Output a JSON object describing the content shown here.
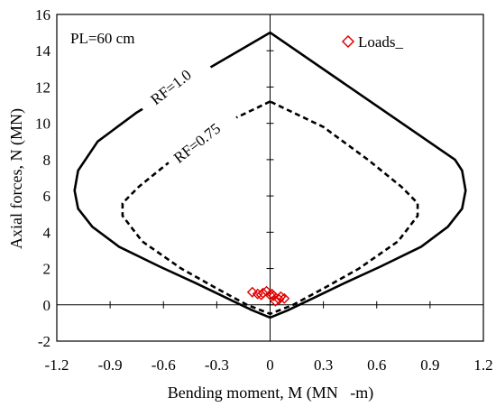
{
  "chart_data": {
    "type": "scatter",
    "title": "",
    "xlabel": "Bending moment, M (MN   -m)",
    "ylabel": "Axial forces, N (MN)",
    "xlim": [
      -1.2,
      1.2
    ],
    "ylim": [
      -2,
      16
    ],
    "x_ticks": [
      -1.2,
      -0.9,
      -0.6,
      -0.3,
      0,
      0.3,
      0.6,
      0.9,
      1.2
    ],
    "x_tick_labels": [
      "-1.2",
      "-0.9",
      "-0.6",
      "-0.3",
      "0",
      "0.3",
      "0.6",
      "0.9",
      "1.2"
    ],
    "y_ticks": [
      -2,
      0,
      2,
      4,
      6,
      8,
      10,
      12,
      14,
      16
    ],
    "y_tick_labels": [
      "-2",
      "0",
      "2",
      "4",
      "6",
      "8",
      "10",
      "12",
      "14",
      "16"
    ],
    "grid": false,
    "legend_position": "top-right",
    "annotations": [
      "PL=60 cm",
      "RF=1.0",
      "RF=0.75"
    ],
    "series": [
      {
        "name": "RF=1.0",
        "kind": "line",
        "style": "solid",
        "color": "#000000",
        "x": [
          0,
          -0.35,
          -0.75,
          -0.97,
          -1.08,
          -1.1,
          -1.08,
          -1.0,
          -0.85,
          -0.62,
          -0.42,
          -0.25,
          -0.1,
          0,
          0.1,
          0.25,
          0.42,
          0.62,
          0.85,
          1.0,
          1.08,
          1.1,
          1.08,
          1.04,
          0
        ],
        "y": [
          15.0,
          13.0,
          10.6,
          9.0,
          7.4,
          6.3,
          5.3,
          4.3,
          3.2,
          2.1,
          1.2,
          0.4,
          -0.3,
          -0.7,
          -0.3,
          0.4,
          1.2,
          2.1,
          3.2,
          4.3,
          5.3,
          6.3,
          7.4,
          8.0,
          15.0
        ]
      },
      {
        "name": "RF=0.75",
        "kind": "line",
        "style": "dashed",
        "color": "#000000",
        "x": [
          0,
          -0.3,
          -0.55,
          -0.74,
          -0.83,
          -0.83,
          -0.72,
          -0.5,
          -0.3,
          -0.13,
          0,
          0.13,
          0.3,
          0.5,
          0.72,
          0.83,
          0.83,
          0.74,
          0.55,
          0.3,
          0
        ],
        "y": [
          11.2,
          9.8,
          8.0,
          6.5,
          5.6,
          4.9,
          3.5,
          2.0,
          0.9,
          0.0,
          -0.5,
          0.0,
          0.9,
          2.0,
          3.5,
          4.9,
          5.6,
          6.5,
          8.0,
          9.8,
          11.2
        ]
      },
      {
        "name": "Loads_",
        "kind": "scatter",
        "marker": "diamond",
        "color": "#e00000",
        "x": [
          -0.1,
          -0.07,
          -0.04,
          -0.02,
          0.0,
          0.02,
          0.03,
          0.05,
          0.06,
          0.08,
          -0.05,
          0.01
        ],
        "y": [
          0.7,
          0.6,
          0.65,
          0.75,
          0.55,
          0.5,
          0.2,
          0.3,
          0.45,
          0.35,
          0.55,
          0.6
        ]
      }
    ]
  }
}
